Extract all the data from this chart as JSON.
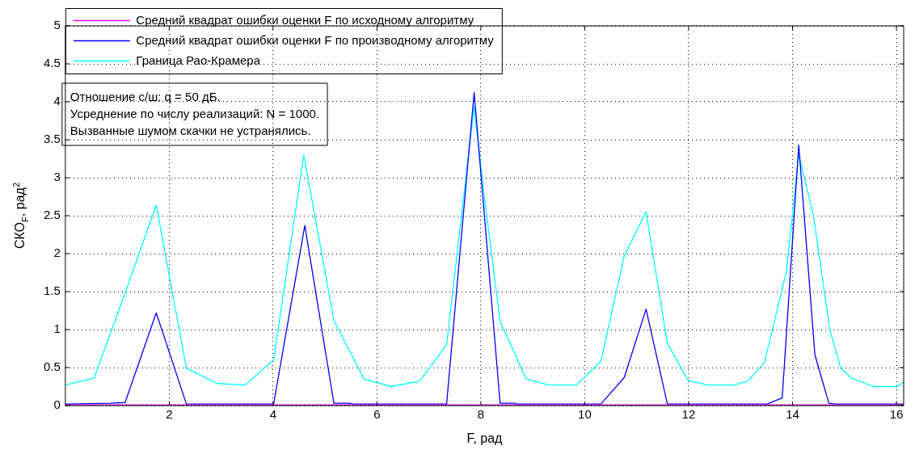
{
  "chart_data": {
    "type": "line",
    "xlabel": "F, рад",
    "ylabel": "СКО$_{F}$, рад$^{2}$",
    "xlim": [
      0,
      16.14
    ],
    "xticks": [
      2,
      4,
      6,
      8,
      10,
      12,
      14,
      16
    ],
    "ylim": [
      0,
      5
    ],
    "yticks": [
      0,
      0.5,
      1,
      1.5,
      2,
      2.5,
      3,
      3.5,
      4,
      4.5,
      5
    ],
    "grid": true,
    "legend": "top left",
    "marker": "none",
    "line_style": "solid",
    "annotations": [
      "Отношение с/ш: q = 50 дБ.",
      "Усреднение по числу реализаций: N = 1000.",
      "Вызванные шумом скачки не устранялись."
    ],
    "series": [
      {
        "name": "Средний квадрат ошибки оценки F по исходному алгоритму",
        "color": "#ff00ff",
        "x": [
          0,
          4,
          8,
          12,
          16.14
        ],
        "values": [
          0.01,
          0.01,
          0.01,
          0.01,
          0.01
        ]
      },
      {
        "name": "Средний квадрат ошибки оценки F по производному алгоритму",
        "color": "#0000ff",
        "x": [
          0,
          0.87,
          1.15,
          1.75,
          2.33,
          4.01,
          4.61,
          5.17,
          5.46,
          5.55,
          7.34,
          7.87,
          8.37,
          8.63,
          8.7,
          10.31,
          10.76,
          11.18,
          11.59,
          13.51,
          13.8,
          13.84,
          14.12,
          14.43,
          14.7,
          14.83,
          16.14
        ],
        "values": [
          0.02,
          0.03,
          0.04,
          1.22,
          0.02,
          0.02,
          2.37,
          0.03,
          0.03,
          0.02,
          0.02,
          4.12,
          0.03,
          0.03,
          0.02,
          0.02,
          0.37,
          1.27,
          0.02,
          0.02,
          0.1,
          0.5,
          3.43,
          0.67,
          0.03,
          0.02,
          0.02
        ]
      },
      {
        "name": "Граница Рао-Крамера",
        "color": "#00ffff",
        "x": [
          0,
          0.55,
          1.16,
          1.75,
          2.33,
          2.92,
          3.46,
          4.01,
          4.59,
          5.17,
          5.75,
          6.27,
          6.82,
          7.34,
          7.87,
          8.05,
          8.37,
          8.87,
          9.31,
          9.84,
          10.31,
          10.76,
          11.18,
          11.59,
          11.99,
          12.36,
          12.88,
          13.14,
          13.46,
          13.88,
          14.12,
          14.4,
          14.72,
          14.93,
          15.14,
          15.56,
          16.03,
          16.14
        ],
        "values": [
          0.27,
          0.36,
          1.5,
          2.64,
          0.49,
          0.29,
          0.27,
          0.6,
          3.3,
          1.12,
          0.35,
          0.25,
          0.32,
          0.8,
          3.94,
          2.84,
          1.11,
          0.35,
          0.27,
          0.27,
          0.58,
          1.97,
          2.55,
          0.82,
          0.33,
          0.27,
          0.27,
          0.32,
          0.57,
          1.76,
          3.3,
          2.51,
          0.99,
          0.49,
          0.36,
          0.25,
          0.25,
          0.31
        ]
      }
    ]
  }
}
